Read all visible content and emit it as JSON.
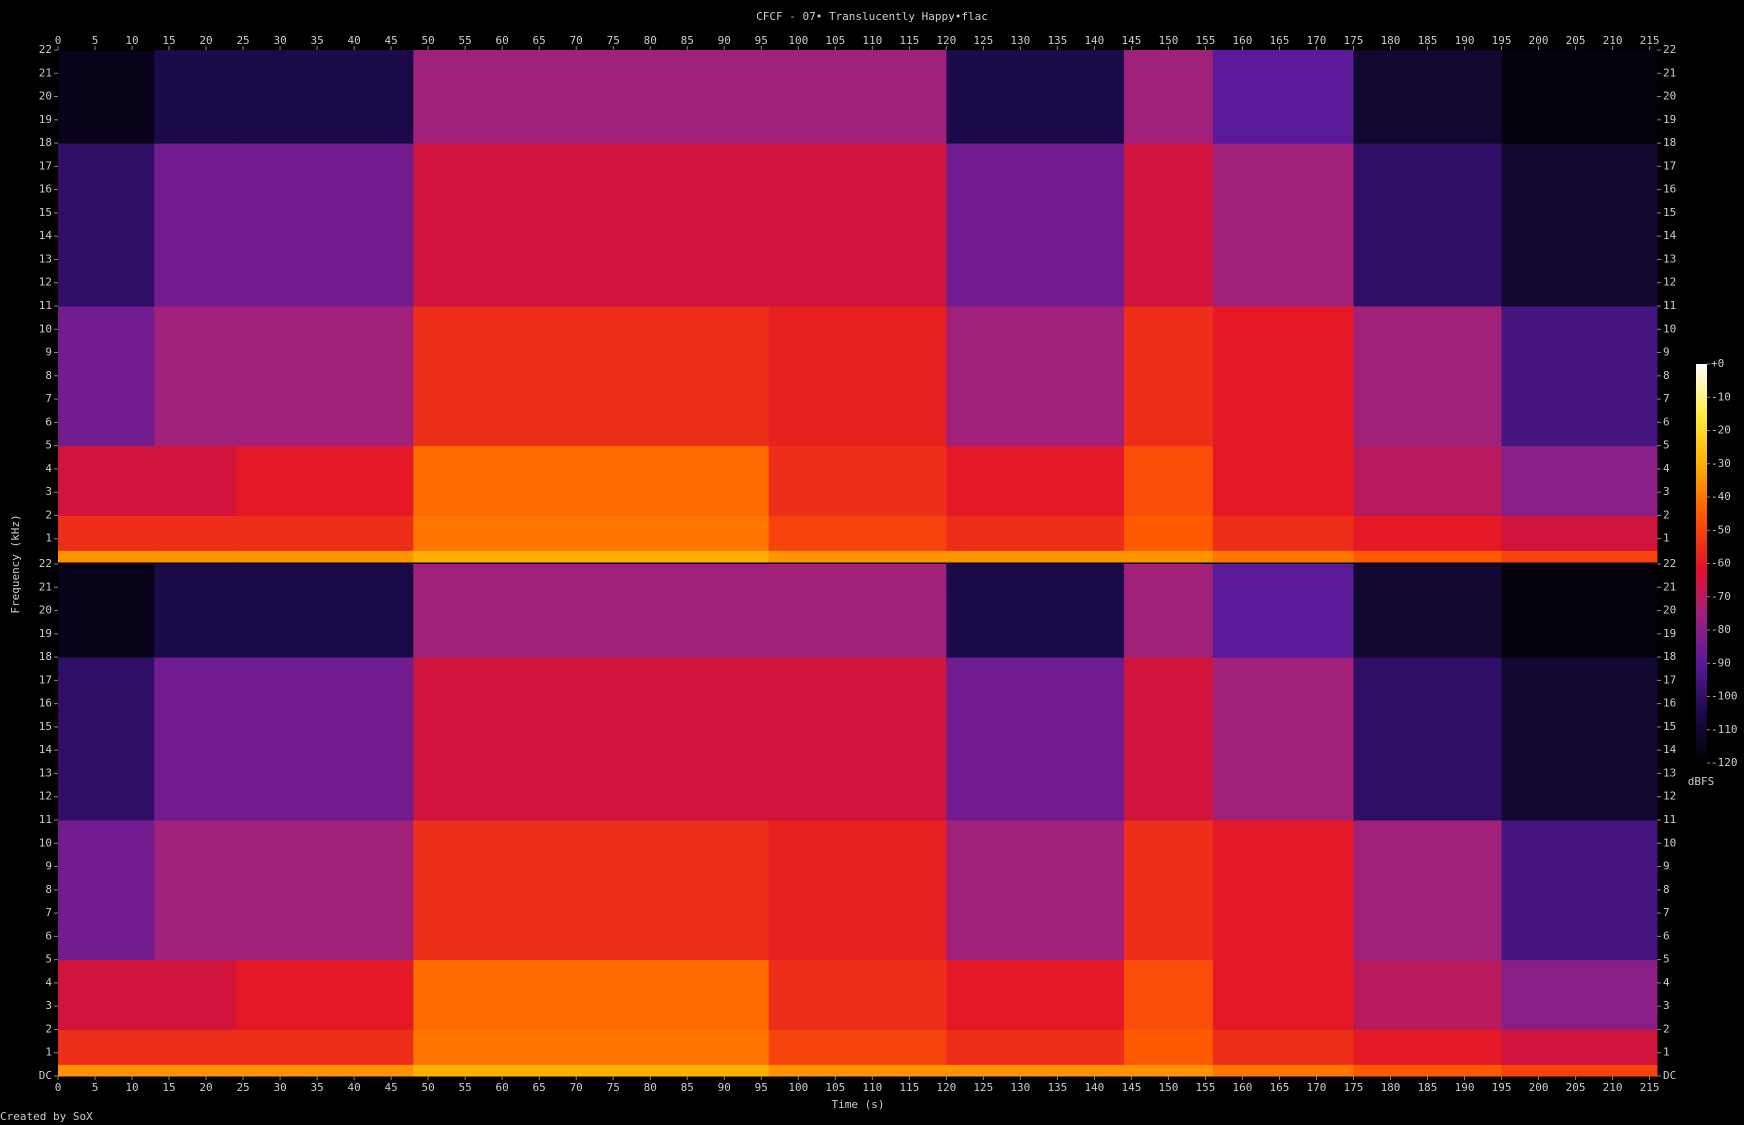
{
  "chart_data": {
    "type": "heatmap",
    "title": "CFCF - 07• Translucently Happy•flac",
    "xlabel": "Time (s)",
    "ylabel": "Frequency (kHz)",
    "footer": "Created by SoX",
    "xlim": [
      0,
      216
    ],
    "xticks": [
      0,
      5,
      10,
      15,
      20,
      25,
      30,
      35,
      40,
      45,
      50,
      55,
      60,
      65,
      70,
      75,
      80,
      85,
      90,
      95,
      100,
      105,
      110,
      115,
      120,
      125,
      130,
      135,
      140,
      145,
      150,
      155,
      160,
      165,
      170,
      175,
      180,
      185,
      190,
      195,
      200,
      205,
      210,
      215
    ],
    "colorbar": {
      "label": "dBFS",
      "lim": [
        -120,
        0
      ],
      "ticks": [
        {
          "value": 0,
          "label": "+0"
        },
        -10,
        -20,
        -30,
        -40,
        -50,
        -60,
        -70,
        -80,
        -90,
        -100,
        -110,
        -120
      ]
    },
    "colormap": [
      {
        "value": -120,
        "color": "#000000"
      },
      {
        "value": -105,
        "color": "#1a0a4a"
      },
      {
        "value": -90,
        "color": "#5a1a9a"
      },
      {
        "value": -75,
        "color": "#a0207a"
      },
      {
        "value": -62,
        "color": "#e0102a"
      },
      {
        "value": -45,
        "color": "#ff5a00"
      },
      {
        "value": -30,
        "color": "#ffb000"
      },
      {
        "value": -15,
        "color": "#ffee40"
      },
      {
        "value": 0,
        "color": "#ffffff"
      }
    ],
    "channels": [
      {
        "ylim": [
          0,
          22
        ],
        "yticks": [
          1,
          2,
          3,
          4,
          5,
          6,
          7,
          8,
          9,
          10,
          11,
          12,
          13,
          14,
          15,
          16,
          17,
          18,
          19,
          20,
          21,
          22
        ],
        "x_edges": [
          0,
          13,
          24,
          48,
          96,
          120,
          144,
          156,
          175,
          195,
          216
        ],
        "y_edges": [
          0,
          0.5,
          2,
          5,
          11,
          18,
          22
        ],
        "values": [
          [
            -35,
            -55,
            -65,
            -85,
            -100,
            -115
          ],
          [
            -35,
            -55,
            -65,
            -75,
            -85,
            -105
          ],
          [
            -35,
            -55,
            -60,
            -75,
            -85,
            -105
          ],
          [
            -30,
            -40,
            -42,
            -55,
            -65,
            -75
          ],
          [
            -35,
            -50,
            -55,
            -58,
            -65,
            -75
          ],
          [
            -35,
            -55,
            -60,
            -75,
            -85,
            -105
          ],
          [
            -35,
            -45,
            -48,
            -55,
            -65,
            -75
          ],
          [
            -40,
            -55,
            -60,
            -60,
            -75,
            -90
          ],
          [
            -45,
            -60,
            -70,
            -75,
            -100,
            -110
          ],
          [
            -50,
            -65,
            -80,
            -95,
            -110,
            -118
          ]
        ]
      },
      {
        "ylim": [
          0,
          22
        ],
        "yticks": [
          {
            "value": 0,
            "label": "DC"
          },
          1,
          2,
          3,
          4,
          5,
          6,
          7,
          8,
          9,
          10,
          11,
          12,
          13,
          14,
          15,
          16,
          17,
          18,
          19,
          20,
          21,
          22
        ],
        "x_edges": [
          0,
          13,
          24,
          48,
          96,
          120,
          144,
          156,
          175,
          195,
          216
        ],
        "y_edges": [
          0,
          0.5,
          2,
          5,
          11,
          18,
          22
        ],
        "values": [
          [
            -35,
            -55,
            -65,
            -85,
            -100,
            -115
          ],
          [
            -35,
            -55,
            -65,
            -75,
            -85,
            -105
          ],
          [
            -35,
            -55,
            -60,
            -75,
            -85,
            -105
          ],
          [
            -30,
            -40,
            -42,
            -55,
            -65,
            -75
          ],
          [
            -35,
            -50,
            -55,
            -58,
            -65,
            -75
          ],
          [
            -35,
            -55,
            -60,
            -75,
            -85,
            -105
          ],
          [
            -35,
            -45,
            -48,
            -55,
            -65,
            -75
          ],
          [
            -40,
            -55,
            -60,
            -60,
            -75,
            -90
          ],
          [
            -45,
            -60,
            -70,
            -75,
            -100,
            -110
          ],
          [
            -50,
            -65,
            -80,
            -95,
            -110,
            -118
          ]
        ]
      }
    ]
  }
}
